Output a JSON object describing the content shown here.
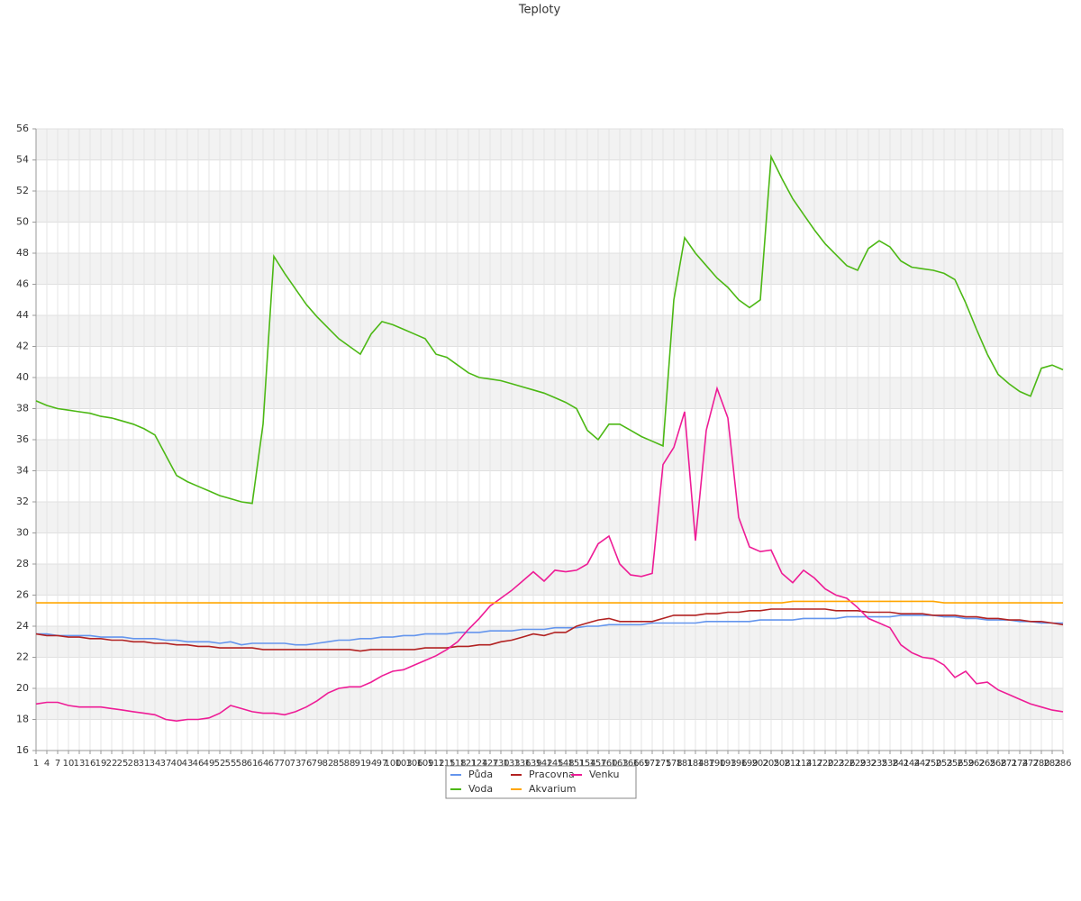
{
  "chart_data": {
    "type": "line",
    "title": "Teploty",
    "x": [
      1,
      4,
      7,
      10,
      13,
      16,
      19,
      22,
      25,
      28,
      31,
      34,
      37,
      40,
      43,
      46,
      49,
      52,
      55,
      58,
      61,
      64,
      67,
      70,
      73,
      76,
      79,
      82,
      85,
      88,
      91,
      94,
      97,
      100,
      103,
      106,
      109,
      112,
      115,
      118,
      121,
      124,
      127,
      130,
      133,
      136,
      139,
      142,
      145,
      148,
      151,
      154,
      157,
      160,
      163,
      166,
      169,
      172,
      175,
      178,
      181,
      184,
      187,
      190,
      193,
      196,
      199,
      202,
      205,
      208,
      211,
      214,
      217,
      220,
      223,
      226,
      229,
      232,
      235,
      238,
      241,
      244,
      247,
      250,
      253,
      256,
      259,
      262,
      265,
      268,
      271,
      274,
      277,
      280,
      283,
      286
    ],
    "xlim": [
      1,
      286
    ],
    "xticks": [
      1,
      4,
      7,
      10,
      13,
      16,
      19,
      22,
      25,
      28,
      31,
      34,
      37,
      40,
      43,
      46,
      49,
      52,
      55,
      58,
      61,
      64,
      67,
      70,
      73,
      76,
      79,
      82,
      85,
      88,
      91,
      94,
      97,
      100,
      103,
      106,
      109,
      112,
      115,
      118,
      121,
      124,
      127,
      130,
      133,
      136,
      139,
      142,
      145,
      148,
      151,
      154,
      157,
      160,
      163,
      166,
      169,
      172,
      175,
      178,
      181,
      184,
      187,
      190,
      193,
      196,
      199,
      202,
      205,
      208,
      211,
      214,
      217,
      220,
      223,
      226,
      229,
      232,
      235,
      238,
      241,
      244,
      247,
      250,
      253,
      256,
      259,
      262,
      265,
      268,
      271,
      274,
      277,
      280,
      283,
      286
    ],
    "ylim": [
      16,
      56
    ],
    "yticks": [
      16,
      18,
      20,
      22,
      24,
      26,
      28,
      30,
      32,
      34,
      36,
      38,
      40,
      42,
      44,
      46,
      48,
      50,
      52,
      54,
      56
    ],
    "grid": true,
    "legend": "bottom",
    "series": [
      {
        "name": "Půda",
        "color": "#6495ed",
        "values": [
          23.5,
          23.5,
          23.4,
          23.4,
          23.4,
          23.4,
          23.3,
          23.3,
          23.3,
          23.2,
          23.2,
          23.2,
          23.1,
          23.1,
          23.0,
          23.0,
          23.0,
          22.9,
          23.0,
          22.8,
          22.9,
          22.9,
          22.9,
          22.9,
          22.8,
          22.8,
          22.9,
          23.0,
          23.1,
          23.1,
          23.2,
          23.2,
          23.3,
          23.3,
          23.4,
          23.4,
          23.5,
          23.5,
          23.5,
          23.6,
          23.6,
          23.6,
          23.7,
          23.7,
          23.7,
          23.8,
          23.8,
          23.8,
          23.9,
          23.9,
          23.9,
          24.0,
          24.0,
          24.1,
          24.1,
          24.1,
          24.1,
          24.2,
          24.2,
          24.2,
          24.2,
          24.2,
          24.3,
          24.3,
          24.3,
          24.3,
          24.3,
          24.4,
          24.4,
          24.4,
          24.4,
          24.5,
          24.5,
          24.5,
          24.5,
          24.6,
          24.6,
          24.6,
          24.6,
          24.6,
          24.7,
          24.7,
          24.7,
          24.7,
          24.6,
          24.6,
          24.5,
          24.5,
          24.4,
          24.4,
          24.4,
          24.3,
          24.3,
          24.2,
          24.2,
          24.2
        ]
      },
      {
        "name": "Pracovna",
        "color": "#b22222",
        "values": [
          23.5,
          23.4,
          23.4,
          23.3,
          23.3,
          23.2,
          23.2,
          23.1,
          23.1,
          23.0,
          23.0,
          22.9,
          22.9,
          22.8,
          22.8,
          22.7,
          22.7,
          22.6,
          22.6,
          22.6,
          22.6,
          22.5,
          22.5,
          22.5,
          22.5,
          22.5,
          22.5,
          22.5,
          22.5,
          22.5,
          22.4,
          22.5,
          22.5,
          22.5,
          22.5,
          22.5,
          22.6,
          22.6,
          22.6,
          22.7,
          22.7,
          22.8,
          22.8,
          23.0,
          23.1,
          23.3,
          23.5,
          23.4,
          23.6,
          23.6,
          24.0,
          24.2,
          24.4,
          24.5,
          24.3,
          24.3,
          24.3,
          24.3,
          24.5,
          24.7,
          24.7,
          24.7,
          24.8,
          24.8,
          24.9,
          24.9,
          25.0,
          25.0,
          25.1,
          25.1,
          25.1,
          25.1,
          25.1,
          25.1,
          25.0,
          25.0,
          25.0,
          24.9,
          24.9,
          24.9,
          24.8,
          24.8,
          24.8,
          24.7,
          24.7,
          24.7,
          24.6,
          24.6,
          24.5,
          24.5,
          24.4,
          24.4,
          24.3,
          24.3,
          24.2,
          24.1
        ]
      },
      {
        "name": "Venku",
        "color": "#ee1c96",
        "values": [
          19.0,
          19.1,
          19.1,
          18.9,
          18.8,
          18.8,
          18.8,
          18.7,
          18.6,
          18.5,
          18.4,
          18.3,
          18.0,
          17.9,
          18.0,
          18.0,
          18.1,
          18.4,
          18.9,
          18.7,
          18.5,
          18.4,
          18.4,
          18.3,
          18.5,
          18.8,
          19.2,
          19.7,
          20.0,
          20.1,
          20.1,
          20.4,
          20.8,
          21.1,
          21.2,
          21.5,
          21.8,
          22.1,
          22.5,
          23.0,
          23.8,
          24.5,
          25.3,
          25.8,
          26.3,
          26.9,
          27.5,
          26.9,
          27.6,
          27.5,
          27.6,
          28.0,
          29.3,
          29.8,
          28.0,
          27.3,
          27.2,
          27.4,
          34.4,
          35.5,
          37.8,
          29.5,
          36.6,
          39.3,
          37.4,
          31.0,
          29.1,
          28.8,
          28.9,
          27.4,
          26.8,
          27.6,
          27.1,
          26.4,
          26.0,
          25.8,
          25.2,
          24.5,
          24.2,
          23.9,
          22.8,
          22.3,
          22.0,
          21.9,
          21.5,
          20.7,
          21.1,
          20.3,
          20.4,
          19.9,
          19.6,
          19.3,
          19.0,
          18.8,
          18.6,
          18.5
        ]
      },
      {
        "name": "Voda",
        "color": "#4cb814",
        "values": [
          38.5,
          38.2,
          38.0,
          37.9,
          37.8,
          37.7,
          37.5,
          37.4,
          37.2,
          37.0,
          36.7,
          36.3,
          35.0,
          33.7,
          33.3,
          33.0,
          32.7,
          32.4,
          32.2,
          32.0,
          31.9,
          37.0,
          47.8,
          46.7,
          45.7,
          44.7,
          43.9,
          43.2,
          42.5,
          42.0,
          41.5,
          42.8,
          43.6,
          43.4,
          43.1,
          42.8,
          42.5,
          41.5,
          41.3,
          40.8,
          40.3,
          40.0,
          39.9,
          39.8,
          39.6,
          39.4,
          39.2,
          39.0,
          38.7,
          38.4,
          38.0,
          36.6,
          36.0,
          37.0,
          37.0,
          36.6,
          36.2,
          35.9,
          35.6,
          45.0,
          49.0,
          48.0,
          47.2,
          46.4,
          45.8,
          45.0,
          44.5,
          45.0,
          54.2,
          52.8,
          51.5,
          50.5,
          49.5,
          48.6,
          47.9,
          47.2,
          46.9,
          48.3,
          48.8,
          48.4,
          47.5,
          47.1,
          47.0,
          46.9,
          46.7,
          46.3,
          44.8,
          43.1,
          41.5,
          40.2,
          39.6,
          39.1,
          38.8,
          40.6,
          40.8,
          40.5
        ]
      },
      {
        "name": "Akvarium",
        "color": "#ffa500",
        "values": [
          25.5,
          25.5,
          25.5,
          25.5,
          25.5,
          25.5,
          25.5,
          25.5,
          25.5,
          25.5,
          25.5,
          25.5,
          25.5,
          25.5,
          25.5,
          25.5,
          25.5,
          25.5,
          25.5,
          25.5,
          25.5,
          25.5,
          25.5,
          25.5,
          25.5,
          25.5,
          25.5,
          25.5,
          25.5,
          25.5,
          25.5,
          25.5,
          25.5,
          25.5,
          25.5,
          25.5,
          25.5,
          25.5,
          25.5,
          25.5,
          25.5,
          25.5,
          25.5,
          25.5,
          25.5,
          25.5,
          25.5,
          25.5,
          25.5,
          25.5,
          25.5,
          25.5,
          25.5,
          25.5,
          25.5,
          25.5,
          25.5,
          25.5,
          25.5,
          25.5,
          25.5,
          25.5,
          25.5,
          25.5,
          25.5,
          25.5,
          25.5,
          25.5,
          25.5,
          25.5,
          25.6,
          25.6,
          25.6,
          25.6,
          25.6,
          25.6,
          25.6,
          25.6,
          25.6,
          25.6,
          25.6,
          25.6,
          25.6,
          25.6,
          25.5,
          25.5,
          25.5,
          25.5,
          25.5,
          25.5,
          25.5,
          25.5,
          25.5,
          25.5,
          25.5,
          25.5
        ]
      }
    ]
  }
}
